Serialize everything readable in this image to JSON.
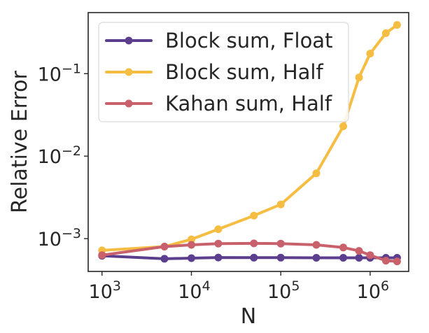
{
  "chart_data": {
    "type": "line",
    "title": "",
    "xlabel": "N",
    "ylabel": "Relative Error",
    "xscale": "log",
    "yscale": "log",
    "xlim": [
      700,
      2700000
    ],
    "ylim": [
      0.0004,
      0.55
    ],
    "x_ticks": [
      {
        "value": 1000,
        "base": "10",
        "exp": "3"
      },
      {
        "value": 10000,
        "base": "10",
        "exp": "4"
      },
      {
        "value": 100000,
        "base": "10",
        "exp": "5"
      },
      {
        "value": 1000000,
        "base": "10",
        "exp": "6"
      }
    ],
    "y_ticks": [
      {
        "value": 0.001,
        "base": "10",
        "exp": "−3"
      },
      {
        "value": 0.01,
        "base": "10",
        "exp": "−2"
      },
      {
        "value": 0.1,
        "base": "10",
        "exp": "−1"
      }
    ],
    "grid": false,
    "legend_position": "top-left",
    "series": [
      {
        "name": "Block sum, Float",
        "color": "#5b3e8e",
        "x": [
          1000,
          5000,
          10000,
          20000,
          50000,
          100000,
          250000,
          500000,
          750000,
          1000000,
          1500000,
          2000000
        ],
        "y": [
          0.00062,
          0.00057,
          0.00058,
          0.00059,
          0.000588,
          0.000588,
          0.000585,
          0.000585,
          0.000585,
          0.000585,
          0.000585,
          0.000585
        ]
      },
      {
        "name": "Block sum, Half",
        "color": "#f5bd42",
        "x": [
          1000,
          5000,
          10000,
          20000,
          50000,
          100000,
          250000,
          500000,
          750000,
          1000000,
          1500000,
          2000000
        ],
        "y": [
          0.00072,
          0.0008,
          0.00098,
          0.0013,
          0.0019,
          0.0026,
          0.0062,
          0.023,
          0.09,
          0.175,
          0.31,
          0.39
        ]
      },
      {
        "name": "Kahan sum, Half",
        "color": "#c8616b",
        "x": [
          1000,
          5000,
          10000,
          20000,
          50000,
          100000,
          250000,
          500000,
          750000,
          1000000,
          1500000,
          2000000
        ],
        "y": [
          0.00063,
          0.0008,
          0.00084,
          0.00087,
          0.000875,
          0.00087,
          0.00084,
          0.00078,
          0.00071,
          0.00063,
          0.00054,
          0.00053
        ]
      }
    ]
  }
}
